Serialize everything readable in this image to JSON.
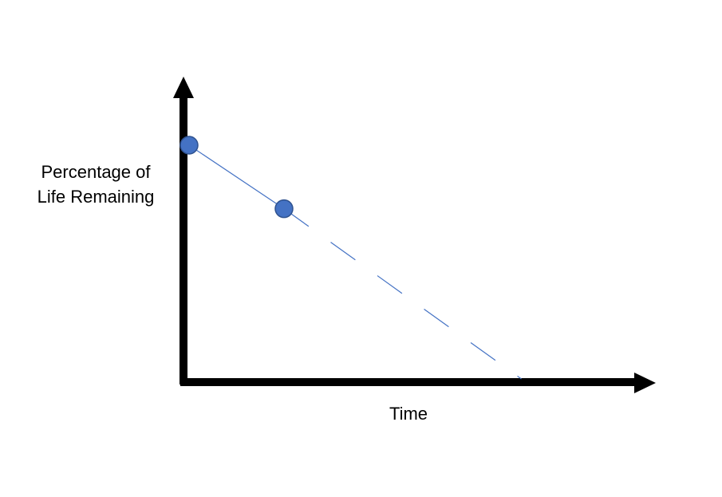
{
  "labels": {
    "y_axis_line1": "Percentage of",
    "y_axis_line2": "Life Remaining",
    "x_axis": "Time"
  },
  "colors": {
    "axis": "#000000",
    "point_fill": "#4472C4",
    "point_stroke": "#2F528F",
    "line": "#4472C4"
  },
  "chart_data": {
    "type": "line",
    "xlabel": "Time",
    "ylabel": "Percentage of Life Remaining",
    "points": [
      {
        "x": 0,
        "y": 1.0
      },
      {
        "x": 1,
        "y": 0.73
      }
    ],
    "trend": {
      "solid_segment": "between points",
      "dashed_extrapolation": "from second point to x-axis",
      "x_intercept": 3.5
    },
    "ticks": false,
    "grid": false
  }
}
